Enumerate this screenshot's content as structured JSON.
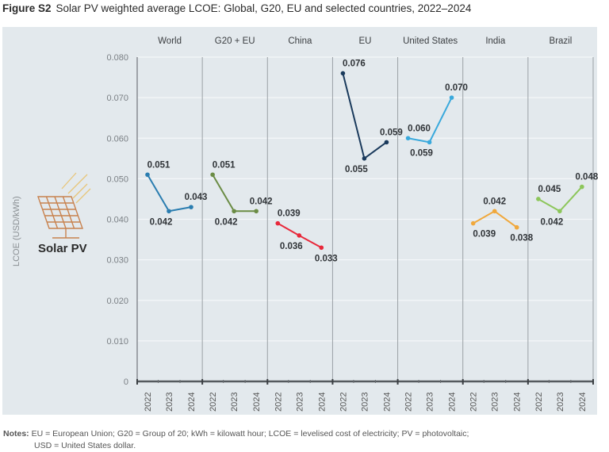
{
  "figure": {
    "label": "Figure S2",
    "title": "Solar PV weighted average LCOE: Global, G20, EU and selected countries, 2022–2024"
  },
  "notes": {
    "label": "Notes:",
    "line1": "EU = European Union; G20 = Group of 20; kWh = kilowatt hour; LCOE = levelised cost of electricity; PV = photovoltaic;",
    "line2": "USD = United States dollar."
  },
  "technology": {
    "label": "Solar PV",
    "icon": "solar-panel-icon",
    "icon_color": "#c8824f"
  },
  "chart_data": {
    "type": "line",
    "title": "Solar PV weighted average LCOE: Global, G20, EU and selected countries, 2022–2024",
    "xlabel": "",
    "ylabel": "LCOE (USD/kWh)",
    "ylim": [
      0,
      0.08
    ],
    "yticks": [
      "0",
      "0.010",
      "0.020",
      "0.030",
      "0.040",
      "0.050",
      "0.060",
      "0.070",
      "0.080"
    ],
    "ytick_values": [
      0,
      0.01,
      0.02,
      0.03,
      0.04,
      0.05,
      0.06,
      0.07,
      0.08
    ],
    "grid": true,
    "legend": "none",
    "x": [
      "2022",
      "2023",
      "2024"
    ],
    "series": [
      {
        "name": "World",
        "color": "#2a7db0",
        "values": [
          0.051,
          0.042,
          0.043
        ],
        "labels": [
          "0.051",
          "0.042",
          "0.043"
        ]
      },
      {
        "name": "G20 + EU",
        "color": "#6b8c45",
        "values": [
          0.051,
          0.042,
          0.042
        ],
        "labels": [
          "0.051",
          "0.042",
          "0.042"
        ]
      },
      {
        "name": "China",
        "color": "#e8283a",
        "values": [
          0.039,
          0.036,
          0.033
        ],
        "labels": [
          "0.039",
          "0.036",
          "0.033"
        ]
      },
      {
        "name": "EU",
        "color": "#1a3a5c",
        "values": [
          0.076,
          0.055,
          0.059
        ],
        "labels": [
          "0.076",
          "0.055",
          "0.059"
        ]
      },
      {
        "name": "United States",
        "color": "#3aa9dc",
        "values": [
          0.06,
          0.059,
          0.07
        ],
        "labels": [
          "0.060",
          "0.059",
          "0.070"
        ]
      },
      {
        "name": "India",
        "color": "#f0a83c",
        "values": [
          0.039,
          0.042,
          0.038
        ],
        "labels": [
          "0.039",
          "0.042",
          "0.038"
        ]
      },
      {
        "name": "Brazil",
        "color": "#8cc65a",
        "values": [
          0.045,
          0.042,
          0.048
        ],
        "labels": [
          "0.045",
          "0.042",
          "0.048"
        ]
      }
    ]
  }
}
